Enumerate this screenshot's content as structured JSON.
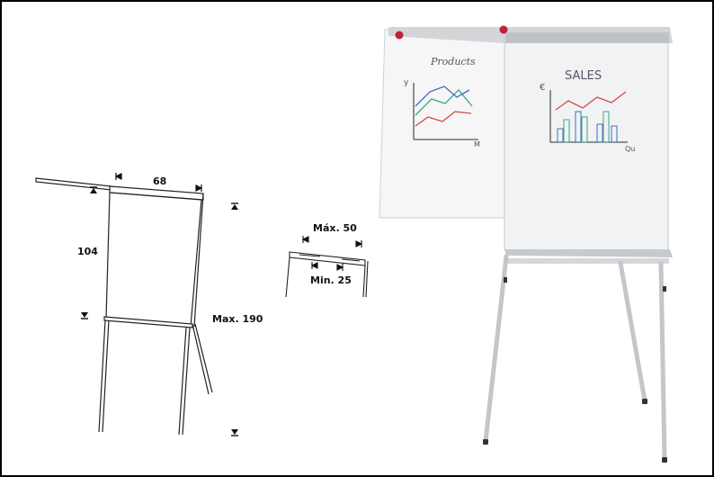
{
  "diagram": {
    "width_label": "68",
    "height_label": "104",
    "max_height_label": "Max. 190",
    "max_gap_label": "Máx. 50",
    "min_gap_label": "Min. 25"
  },
  "photo": {
    "back_sheet_title": "Products",
    "front_sheet_title": "SALES",
    "back_y_axis": "y",
    "back_x_axis": "M",
    "front_y_axis": "€",
    "front_x_axis": "Qu",
    "colors": {
      "easel_frame": "#c9cbce",
      "board": "#f2f3f4",
      "marker_green": "#3aa58a",
      "marker_blue": "#3d6fb8",
      "marker_red": "#d44a4a",
      "magnet": "#c0213a"
    }
  }
}
